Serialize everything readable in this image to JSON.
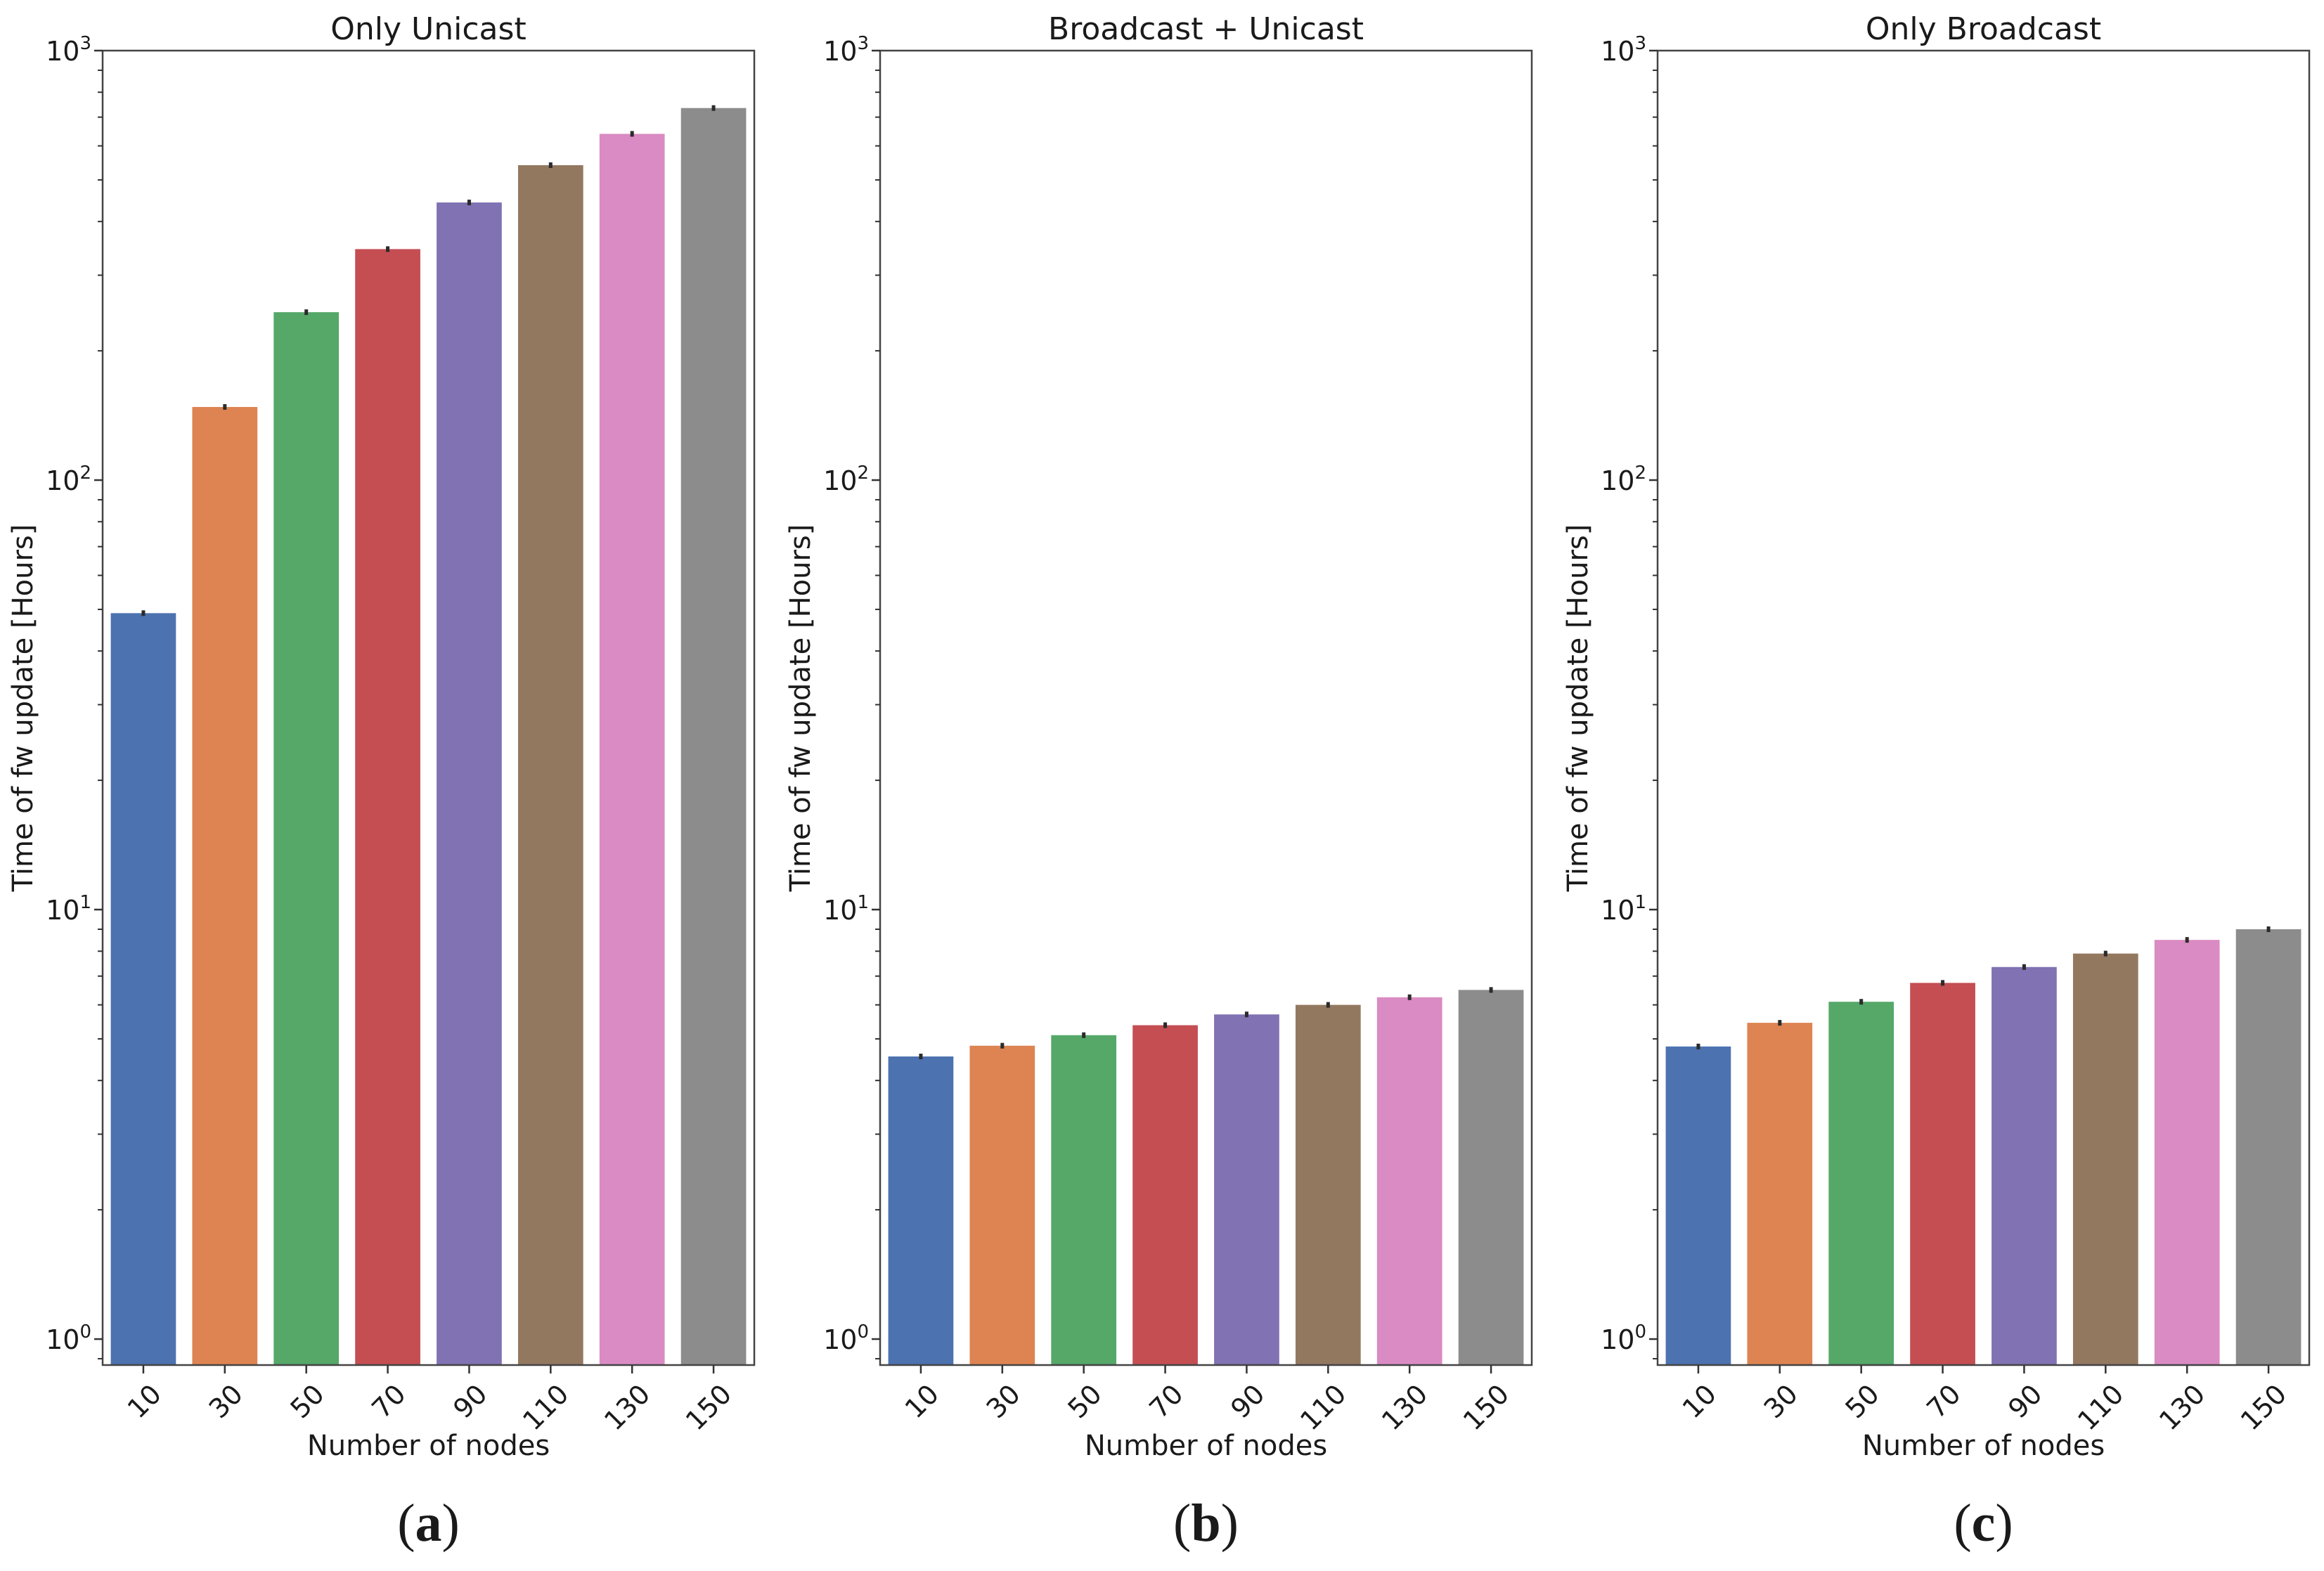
{
  "chart_data": [
    {
      "type": "bar",
      "title": "Only Unicast",
      "xlabel": "Number of nodes",
      "ylabel": "Time of fw update [Hours]",
      "yscale": "log",
      "ylim": [
        0.87,
        1000
      ],
      "yticks": [
        1,
        10,
        100,
        1000
      ],
      "ytick_labels": [
        {
          "base": "10",
          "exp": "0"
        },
        {
          "base": "10",
          "exp": "1"
        },
        {
          "base": "10",
          "exp": "2"
        },
        {
          "base": "10",
          "exp": "3"
        }
      ],
      "categories": [
        "10",
        "30",
        "50",
        "70",
        "90",
        "110",
        "130",
        "150"
      ],
      "values": [
        49,
        148,
        246,
        345,
        443,
        541,
        640,
        735
      ],
      "colors": [
        "#4c72b0",
        "#dd8452",
        "#55a868",
        "#c44e52",
        "#8172b3",
        "#937860",
        "#da8bc3",
        "#8c8c8c"
      ],
      "error_bars": true,
      "grid": false,
      "caption": {
        "open": "(",
        "letter": "a",
        "close": ")"
      }
    },
    {
      "type": "bar",
      "title": "Broadcast + Unicast",
      "xlabel": "Number of nodes",
      "ylabel": "Time of fw update [Hours]",
      "yscale": "log",
      "ylim": [
        0.87,
        1000
      ],
      "yticks": [
        1,
        10,
        100,
        1000
      ],
      "ytick_labels": [
        {
          "base": "10",
          "exp": "0"
        },
        {
          "base": "10",
          "exp": "1"
        },
        {
          "base": "10",
          "exp": "2"
        },
        {
          "base": "10",
          "exp": "3"
        }
      ],
      "categories": [
        "10",
        "30",
        "50",
        "70",
        "90",
        "110",
        "130",
        "150"
      ],
      "values": [
        4.55,
        4.82,
        5.1,
        5.38,
        5.7,
        6.0,
        6.25,
        6.5
      ],
      "colors": [
        "#4c72b0",
        "#dd8452",
        "#55a868",
        "#c44e52",
        "#8172b3",
        "#937860",
        "#da8bc3",
        "#8c8c8c"
      ],
      "error_bars": true,
      "grid": false,
      "caption": {
        "open": "(",
        "letter": "b",
        "close": ")"
      }
    },
    {
      "type": "bar",
      "title": "Only Broadcast",
      "xlabel": "Number of nodes",
      "ylabel": "Time of fw update [Hours]",
      "yscale": "log",
      "ylim": [
        0.87,
        1000
      ],
      "yticks": [
        1,
        10,
        100,
        1000
      ],
      "ytick_labels": [
        {
          "base": "10",
          "exp": "0"
        },
        {
          "base": "10",
          "exp": "1"
        },
        {
          "base": "10",
          "exp": "2"
        },
        {
          "base": "10",
          "exp": "3"
        }
      ],
      "categories": [
        "10",
        "30",
        "50",
        "70",
        "90",
        "110",
        "130",
        "150"
      ],
      "values": [
        4.8,
        5.45,
        6.1,
        6.75,
        7.35,
        7.9,
        8.5,
        9.0
      ],
      "colors": [
        "#4c72b0",
        "#dd8452",
        "#55a868",
        "#c44e52",
        "#8172b3",
        "#937860",
        "#da8bc3",
        "#8c8c8c"
      ],
      "error_bars": true,
      "grid": false,
      "caption": {
        "open": "(",
        "letter": "c",
        "close": ")"
      }
    }
  ]
}
